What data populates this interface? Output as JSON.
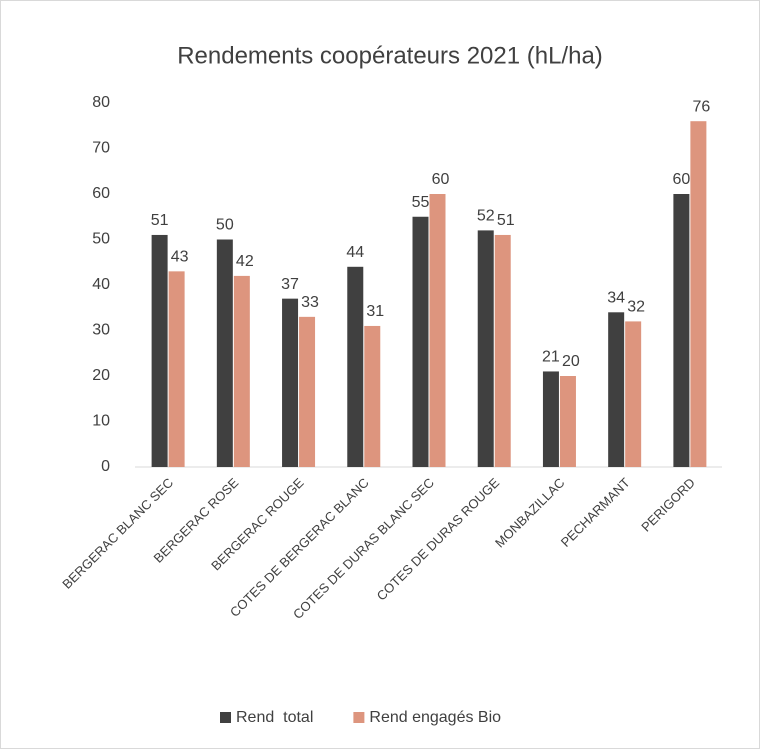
{
  "chart_data": {
    "type": "bar",
    "title": "Rendements coopérateurs 2021 (hL/ha)",
    "categories": [
      "BERGERAC BLANC SEC",
      "BERGERAC ROSE",
      "BERGERAC ROUGE",
      "COTES DE BERGERAC BLANC",
      "COTES DE DURAS BLANC SEC",
      "COTES DE DURAS ROUGE",
      "MONBAZILLAC",
      "PECHARMANT",
      "PERIGORD"
    ],
    "series": [
      {
        "name": "Rend  total",
        "color": "#404040",
        "values": [
          51,
          50,
          37,
          44,
          55,
          52,
          21,
          34,
          60
        ]
      },
      {
        "name": "Rend engagés Bio",
        "color": "#dd957e",
        "values": [
          43,
          42,
          33,
          31,
          60,
          51,
          20,
          32,
          76
        ]
      }
    ],
    "ylim": [
      0,
      80
    ],
    "yticks": [
      0,
      10,
      20,
      30,
      40,
      50,
      60,
      70,
      80
    ],
    "grid": false,
    "legend": "bottom"
  }
}
